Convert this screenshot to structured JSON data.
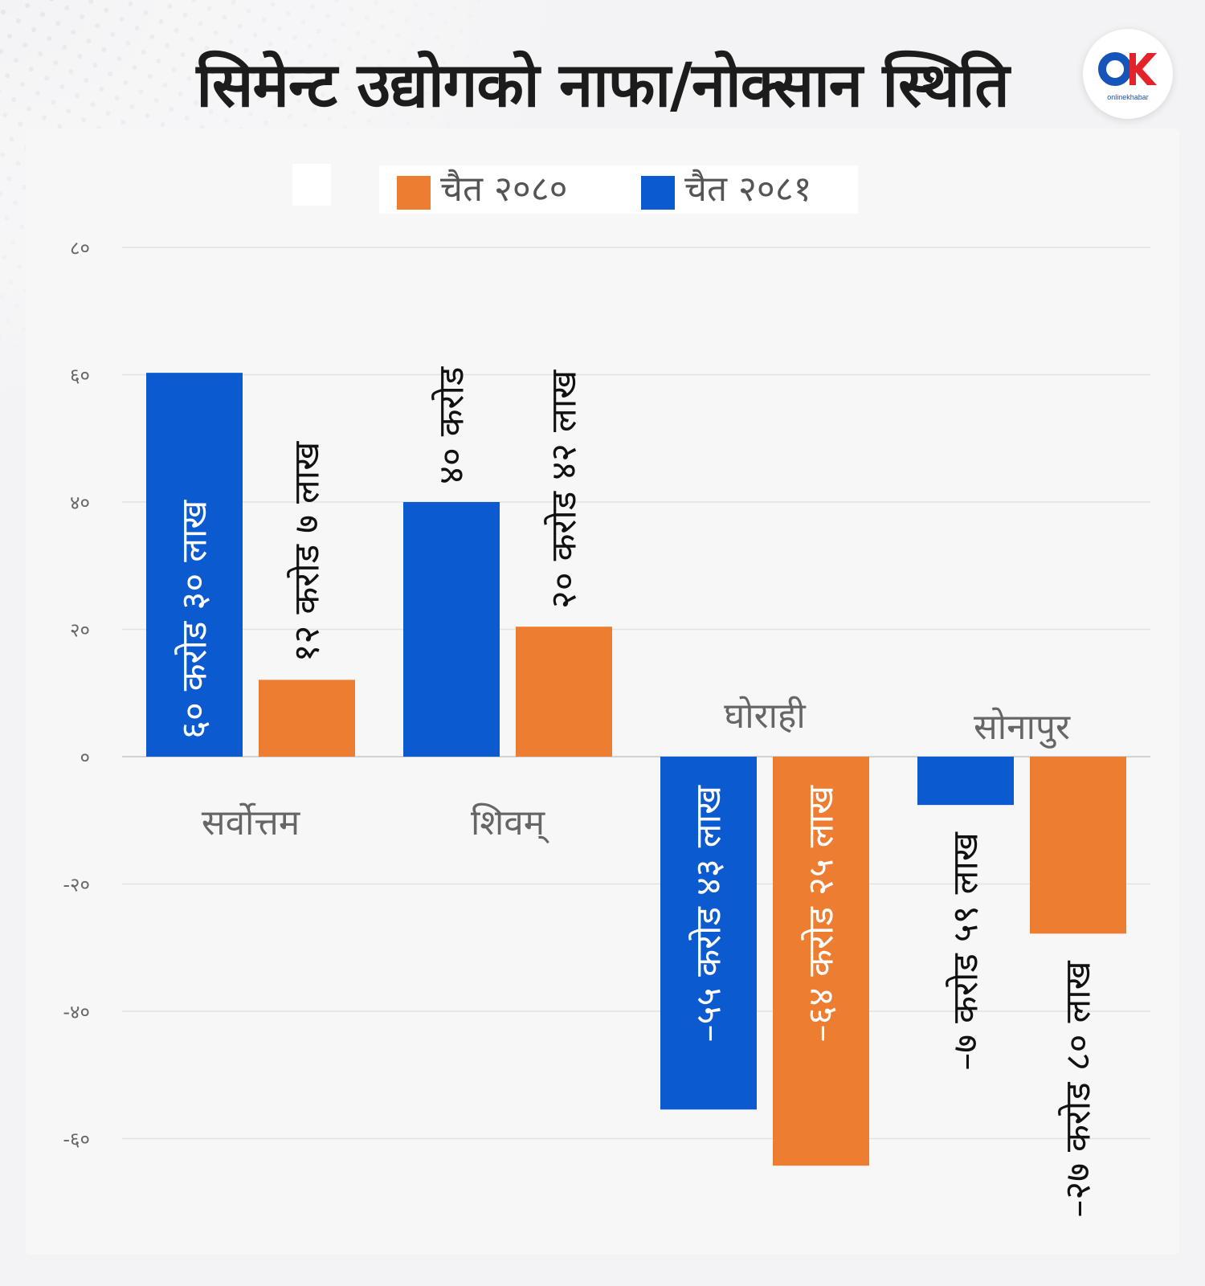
{
  "title": "सिमेन्ट उद्योगको नाफा/नोक्सान स्थिति",
  "logo": {
    "text": "onlinekhabar",
    "colors": {
      "o": "#1554b8",
      "k": "#e3232a"
    }
  },
  "legend": [
    {
      "label": "चैत २०८०",
      "color": "#ed7d31"
    },
    {
      "label": "चैत २०८१",
      "color": "#0b5ad0"
    }
  ],
  "chart_data": {
    "type": "bar",
    "title": "सिमेन्ट उद्योगको नाफा/नोक्सान स्थिति",
    "categories": [
      "सर्वोत्तम",
      "शिवम्",
      "घोराही",
      "सोनापुर"
    ],
    "series": [
      {
        "name": "चैत २०८१",
        "color": "#0b5ad0",
        "values": [
          60.3,
          40,
          -55.43,
          -7.59
        ],
        "labels": [
          "६० करोड ३० लाख",
          "४० करोड",
          "–५५ करोड ४३ लाख",
          "–७ करोड ५९ लाख"
        ]
      },
      {
        "name": "चैत २०८०",
        "color": "#ed7d31",
        "values": [
          12.07,
          20.42,
          -64.25,
          -27.8
        ],
        "labels": [
          "१२ करोड ७ लाख",
          "२० करोड ४२ लाख",
          "–६४ करोड २५ लाख",
          "–२७ करोड ८० लाख"
        ]
      }
    ],
    "yticks": [
      80,
      60,
      40,
      20,
      0,
      -20,
      -40,
      -60
    ],
    "ytick_labels": [
      "८०",
      "६०",
      "४०",
      "२०",
      "०",
      "-२०",
      "-४०",
      "-६०"
    ],
    "ylim": [
      -60,
      80
    ],
    "grid": true,
    "legend_position": "top-center"
  }
}
